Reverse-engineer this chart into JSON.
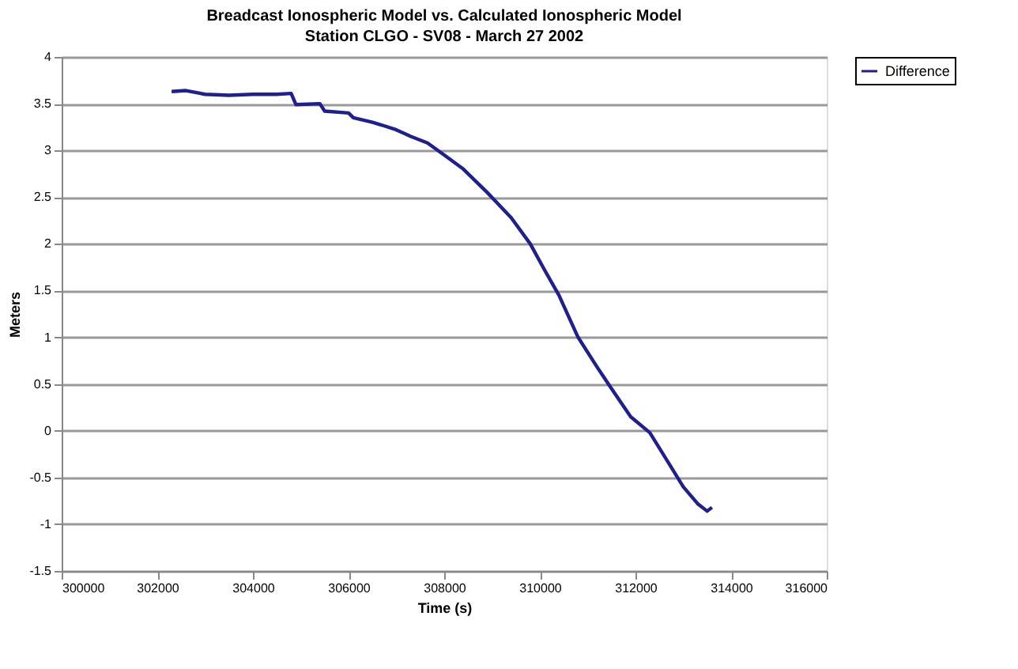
{
  "chart_data": {
    "type": "line",
    "title": "Breadcast Ionospheric Model vs. Calculated Ionospheric Model",
    "subtitle": "Station CLGO - SV08 - March 27 2002",
    "xlabel": "Time (s)",
    "ylabel": "Meters",
    "x": [
      302300,
      302600,
      303000,
      303500,
      304000,
      304500,
      304800,
      304900,
      305400,
      305500,
      306000,
      306100,
      306500,
      306700,
      307000,
      307300,
      307650,
      308000,
      308400,
      308900,
      309400,
      309800,
      310100,
      310400,
      310800,
      311200,
      311500,
      311900,
      312300,
      312700,
      313000,
      313300,
      313500,
      313600
    ],
    "series": [
      {
        "name": "Difference",
        "color": "#1f1f8f",
        "values": [
          3.63,
          3.64,
          3.6,
          3.59,
          3.6,
          3.6,
          3.61,
          3.49,
          3.5,
          3.42,
          3.4,
          3.35,
          3.3,
          3.27,
          3.22,
          3.15,
          3.08,
          2.95,
          2.8,
          2.55,
          2.28,
          2.0,
          1.72,
          1.45,
          1.0,
          0.68,
          0.45,
          0.15,
          -0.02,
          -0.35,
          -0.6,
          -0.78,
          -0.86,
          -0.82
        ]
      }
    ],
    "xlim": [
      300000,
      316000
    ],
    "xticks": [
      300000,
      302000,
      304000,
      306000,
      308000,
      310000,
      312000,
      314000,
      316000
    ],
    "ylim": [
      -1.5,
      4
    ],
    "yticks": [
      -1.5,
      -1,
      -0.5,
      0,
      0.5,
      1,
      1.5,
      2,
      2.5,
      3,
      3.5,
      4
    ],
    "grid": "y",
    "legend": "right",
    "marker": "none",
    "line_style": "solid"
  }
}
